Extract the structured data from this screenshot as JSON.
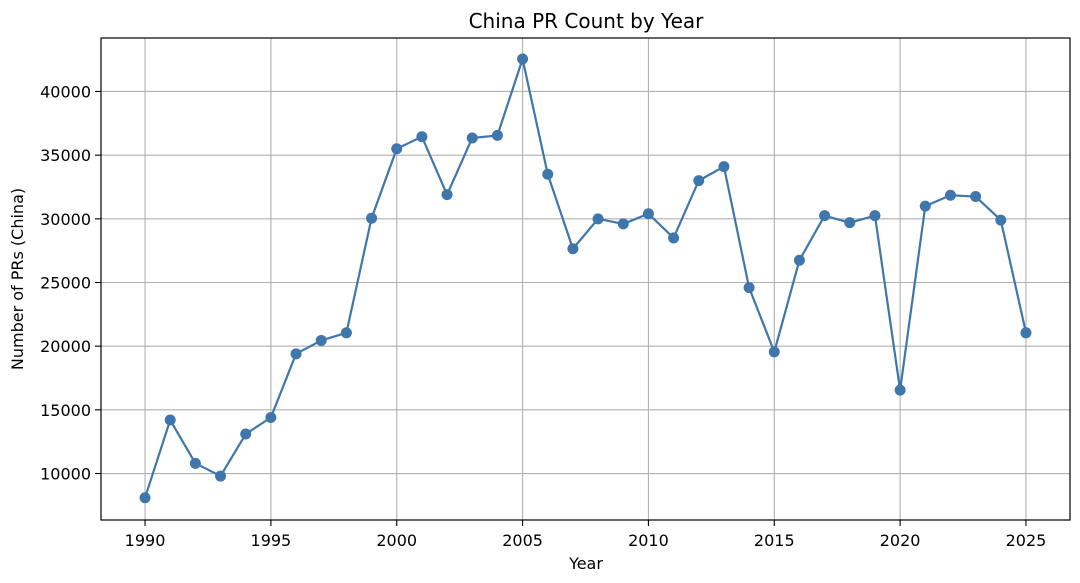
{
  "chart_data": {
    "type": "line",
    "title": "China PR Count by Year",
    "xlabel": "Year",
    "ylabel": "Number of PRs (China)",
    "xlim": [
      1988.25,
      2026.75
    ],
    "ylim": [
      6350,
      44200
    ],
    "xticks": [
      1990,
      1995,
      2000,
      2005,
      2010,
      2015,
      2020,
      2025
    ],
    "yticks": [
      10000,
      15000,
      20000,
      25000,
      30000,
      35000,
      40000
    ],
    "grid": true,
    "marker": "circle",
    "color": "#3f76ab",
    "series": [
      {
        "x": [
          1990,
          1991,
          1992,
          1993,
          1994,
          1995,
          1996,
          1997,
          1998,
          1999,
          2000,
          2001,
          2002,
          2003,
          2004,
          2005,
          2006,
          2007,
          2008,
          2009,
          2010,
          2011,
          2012,
          2013,
          2014,
          2015,
          2016,
          2017,
          2018,
          2019,
          2020,
          2021,
          2022,
          2023,
          2024,
          2025
        ],
        "values": [
          8100,
          14200,
          10800,
          9800,
          13100,
          14400,
          19400,
          20450,
          21050,
          30050,
          35500,
          36450,
          31900,
          36350,
          36550,
          42550,
          33500,
          27650,
          30000,
          29600,
          30400,
          28500,
          33000,
          34100,
          24600,
          19550,
          26750,
          30250,
          29700,
          30250,
          16550,
          31000,
          31850,
          31750,
          29900,
          21050
        ]
      }
    ]
  }
}
